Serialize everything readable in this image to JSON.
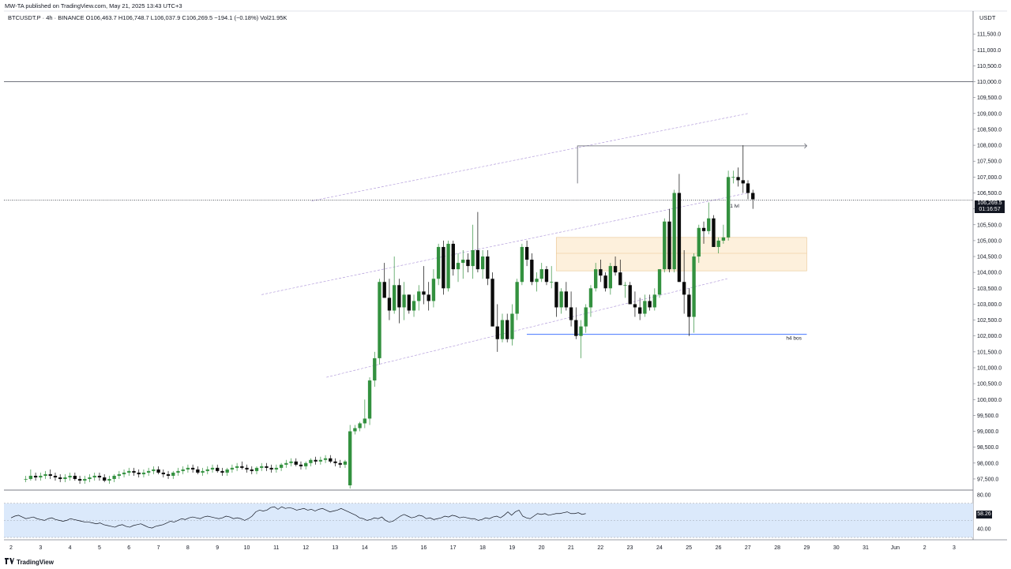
{
  "header": {
    "published": "MW-TA published on TradingView.com, May 21, 2025 13:43 UTC+3",
    "symbol_line": "BTCUSDT.P · 4h · BINANCE  O106,463.7  H106,748.7  L106,037.9  C106,269.5  −194.1 (−0.18%)  Vol21.95K"
  },
  "footer": {
    "brand": "TradingView"
  },
  "colors": {
    "up": "#33913f",
    "down": "#0b0b0b",
    "rsi_band": "#dbe9fb",
    "box": "#fdf0dc",
    "box_border": "#e8c48f",
    "bos_line": "#2962ff",
    "channel": "#b39ddb"
  },
  "icons": {
    "logo": "tradingview-logo-icon"
  },
  "chart_data": {
    "type": "candlestick",
    "currency": "USDT",
    "ylim": [
      97250,
      112000
    ],
    "yticks": [
      97500,
      98000,
      98500,
      99000,
      99500,
      100000,
      100500,
      101000,
      101500,
      102000,
      102500,
      103000,
      103500,
      104000,
      104500,
      105000,
      105500,
      106000,
      106500,
      107000,
      107500,
      108000,
      108500,
      109000,
      109500,
      110000,
      110500,
      111000,
      111500
    ],
    "ytick_labels": [
      "97,500.0",
      "98,000.0",
      "98,500.0",
      "99,000.0",
      "99,500.0",
      "100,000.0",
      "100,500.0",
      "101,000.0",
      "101,500.0",
      "102,000.0",
      "102,500.0",
      "103,000.0",
      "103,500.0",
      "104,000.0",
      "104,500.0",
      "105,000.0",
      "105,500.0",
      "106,000.0",
      "106,500.0",
      "107,000.0",
      "107,500.0",
      "108,000.0",
      "108,500.0",
      "109,000.0",
      "109,500.0",
      "110,000.0",
      "110,500.0",
      "111,000.0",
      "111,500.0"
    ],
    "x_range_days": [
      1.6,
      34.5
    ],
    "x_ticks": [
      {
        "day": 2,
        "label": "2"
      },
      {
        "day": 3,
        "label": "3"
      },
      {
        "day": 4,
        "label": "4"
      },
      {
        "day": 5,
        "label": "5"
      },
      {
        "day": 6,
        "label": "6"
      },
      {
        "day": 7,
        "label": "7"
      },
      {
        "day": 8,
        "label": "8"
      },
      {
        "day": 9,
        "label": "9"
      },
      {
        "day": 10,
        "label": "10"
      },
      {
        "day": 11,
        "label": "11"
      },
      {
        "day": 12,
        "label": "12"
      },
      {
        "day": 13,
        "label": "13"
      },
      {
        "day": 14,
        "label": "14"
      },
      {
        "day": 15,
        "label": "15"
      },
      {
        "day": 16,
        "label": "16"
      },
      {
        "day": 17,
        "label": "17"
      },
      {
        "day": 18,
        "label": "18"
      },
      {
        "day": 19,
        "label": "19"
      },
      {
        "day": 20,
        "label": "20"
      },
      {
        "day": 21,
        "label": "21"
      },
      {
        "day": 22,
        "label": "22"
      },
      {
        "day": 23,
        "label": "23"
      },
      {
        "day": 24,
        "label": "24"
      },
      {
        "day": 25,
        "label": "25"
      },
      {
        "day": 26,
        "label": "26"
      },
      {
        "day": 27,
        "label": "27"
      },
      {
        "day": 28,
        "label": "28"
      },
      {
        "day": 29,
        "label": "29"
      },
      {
        "day": 30,
        "label": "30"
      },
      {
        "day": 31,
        "label": "31"
      },
      {
        "day": 32,
        "label": "Jun"
      },
      {
        "day": 33,
        "label": "2"
      },
      {
        "day": 34,
        "label": "3"
      }
    ],
    "candles_start_day": 2.5,
    "candles_step_day": 0.1667,
    "candles": [
      [
        97500,
        97600,
        97400,
        97500
      ],
      [
        97500,
        97800,
        97450,
        97600
      ],
      [
        97600,
        97700,
        97450,
        97550
      ],
      [
        97550,
        97700,
        97450,
        97600
      ],
      [
        97600,
        97750,
        97500,
        97650
      ],
      [
        97650,
        97800,
        97500,
        97600
      ],
      [
        97600,
        97700,
        97450,
        97550
      ],
      [
        97550,
        97650,
        97400,
        97500
      ],
      [
        97500,
        97650,
        97400,
        97550
      ],
      [
        97550,
        97700,
        97450,
        97600
      ],
      [
        97600,
        97700,
        97450,
        97500
      ],
      [
        97500,
        97600,
        97350,
        97450
      ],
      [
        97450,
        97600,
        97350,
        97500
      ],
      [
        97500,
        97650,
        97400,
        97550
      ],
      [
        97550,
        97700,
        97450,
        97600
      ],
      [
        97600,
        97700,
        97450,
        97550
      ],
      [
        97550,
        97650,
        97400,
        97450
      ],
      [
        97450,
        97600,
        97350,
        97500
      ],
      [
        97500,
        97650,
        97400,
        97600
      ],
      [
        97600,
        97750,
        97500,
        97650
      ],
      [
        97650,
        97800,
        97550,
        97700
      ],
      [
        97700,
        97850,
        97600,
        97750
      ],
      [
        97750,
        97850,
        97600,
        97700
      ],
      [
        97700,
        97800,
        97550,
        97650
      ],
      [
        97650,
        97800,
        97550,
        97700
      ],
      [
        97700,
        97850,
        97600,
        97750
      ],
      [
        97750,
        97900,
        97650,
        97800
      ],
      [
        97800,
        97900,
        97650,
        97700
      ],
      [
        97700,
        97800,
        97550,
        97650
      ],
      [
        97650,
        97750,
        97500,
        97600
      ],
      [
        97600,
        97750,
        97500,
        97700
      ],
      [
        97700,
        97850,
        97600,
        97750
      ],
      [
        97750,
        97900,
        97650,
        97800
      ],
      [
        97800,
        97950,
        97700,
        97850
      ],
      [
        97850,
        97950,
        97700,
        97800
      ],
      [
        97800,
        97900,
        97650,
        97700
      ],
      [
        97700,
        97850,
        97600,
        97750
      ],
      [
        97750,
        97900,
        97650,
        97800
      ],
      [
        97800,
        97950,
        97700,
        97850
      ],
      [
        97850,
        97950,
        97700,
        97750
      ],
      [
        97750,
        97850,
        97600,
        97700
      ],
      [
        97700,
        97850,
        97600,
        97800
      ],
      [
        97800,
        97950,
        97700,
        97850
      ],
      [
        97850,
        98000,
        97750,
        97900
      ],
      [
        97900,
        98050,
        97800,
        97850
      ],
      [
        97850,
        97950,
        97700,
        97800
      ],
      [
        97800,
        97900,
        97650,
        97750
      ],
      [
        97750,
        97900,
        97650,
        97850
      ],
      [
        97850,
        98000,
        97750,
        97900
      ],
      [
        97900,
        98000,
        97750,
        97850
      ],
      [
        97850,
        97950,
        97700,
        97800
      ],
      [
        97800,
        97950,
        97700,
        97850
      ],
      [
        97850,
        98000,
        97750,
        97950
      ],
      [
        97950,
        98100,
        97850,
        98000
      ],
      [
        98000,
        98150,
        97900,
        98050
      ],
      [
        98050,
        98150,
        97900,
        97950
      ],
      [
        97950,
        98050,
        97800,
        97900
      ],
      [
        97900,
        98050,
        97800,
        98000
      ],
      [
        98000,
        98150,
        97900,
        98100
      ],
      [
        98100,
        98200,
        97950,
        98050
      ],
      [
        98050,
        98200,
        97950,
        98100
      ],
      [
        98100,
        98250,
        98000,
        98150
      ],
      [
        98150,
        98250,
        98000,
        98050
      ],
      [
        98050,
        98150,
        97900,
        98000
      ],
      [
        98000,
        98100,
        97850,
        97950
      ],
      [
        97950,
        98100,
        97850,
        98050
      ],
      [
        97300,
        99200,
        97200,
        99000
      ],
      [
        99000,
        99200,
        98900,
        99100
      ],
      [
        99100,
        99300,
        99000,
        99250
      ],
      [
        99250,
        100000,
        99100,
        99400
      ],
      [
        99400,
        100700,
        99200,
        100600
      ],
      [
        100600,
        101500,
        100400,
        101300
      ],
      [
        101300,
        103800,
        101100,
        103700
      ],
      [
        103700,
        104300,
        103200,
        103200
      ],
      [
        103200,
        103800,
        102500,
        102800
      ],
      [
        102800,
        104500,
        102700,
        103600
      ],
      [
        103600,
        103800,
        102400,
        102900
      ],
      [
        102900,
        103700,
        102500,
        103300
      ],
      [
        103300,
        103300,
        102700,
        102800
      ],
      [
        102800,
        103300,
        102600,
        103100
      ],
      [
        103100,
        103600,
        102800,
        103400
      ],
      [
        103400,
        104200,
        103000,
        103300
      ],
      [
        103300,
        103700,
        102800,
        103100
      ],
      [
        103100,
        104100,
        102900,
        103800
      ],
      [
        103800,
        104900,
        103600,
        104800
      ],
      [
        104800,
        105000,
        103300,
        103500
      ],
      [
        103500,
        105000,
        103400,
        104900
      ],
      [
        104900,
        105000,
        103900,
        104100
      ],
      [
        104100,
        104600,
        103700,
        104300
      ],
      [
        104300,
        104700,
        103800,
        104400
      ],
      [
        104400,
        104600,
        104000,
        104200
      ],
      [
        104200,
        105500,
        103800,
        104700
      ],
      [
        104700,
        105900,
        104000,
        104100
      ],
      [
        104100,
        104700,
        103800,
        104500
      ],
      [
        104500,
        104700,
        103600,
        103800
      ],
      [
        103800,
        104000,
        102300,
        102300
      ],
      [
        102300,
        103000,
        101500,
        101900
      ],
      [
        101900,
        102700,
        101800,
        102500
      ],
      [
        102500,
        102700,
        101800,
        101900
      ],
      [
        101900,
        103000,
        101700,
        102700
      ],
      [
        102700,
        103800,
        102500,
        103700
      ],
      [
        103700,
        104900,
        103600,
        104800
      ],
      [
        104800,
        105000,
        104200,
        104400
      ],
      [
        104400,
        104600,
        103600,
        103700
      ],
      [
        103700,
        104000,
        103400,
        103800
      ],
      [
        103800,
        104300,
        103700,
        104100
      ],
      [
        104100,
        104200,
        103600,
        103700
      ],
      [
        103700,
        104200,
        103500,
        103700
      ],
      [
        103700,
        103700,
        102600,
        102900
      ],
      [
        102900,
        103500,
        102700,
        103400
      ],
      [
        103400,
        103700,
        102800,
        102900
      ],
      [
        102900,
        103400,
        102300,
        102500
      ],
      [
        102500,
        102900,
        101900,
        102000
      ],
      [
        102000,
        102500,
        101300,
        102300
      ],
      [
        102300,
        103000,
        102100,
        102900
      ],
      [
        102900,
        103600,
        102600,
        103500
      ],
      [
        103500,
        104300,
        103400,
        104100
      ],
      [
        104100,
        104400,
        103700,
        103900
      ],
      [
        103900,
        104000,
        103400,
        103500
      ],
      [
        103500,
        104300,
        103300,
        104200
      ],
      [
        104200,
        104500,
        103900,
        104000
      ],
      [
        104000,
        104400,
        103600,
        103600
      ],
      [
        103600,
        103700,
        103200,
        103600
      ],
      [
        103600,
        103700,
        103000,
        103000
      ],
      [
        103000,
        103400,
        102600,
        102900
      ],
      [
        102900,
        103200,
        102500,
        102700
      ],
      [
        102700,
        103300,
        102600,
        103100
      ],
      [
        103100,
        103300,
        102800,
        102900
      ],
      [
        102900,
        103500,
        102800,
        103300
      ],
      [
        103300,
        104100,
        103200,
        104100
      ],
      [
        104100,
        105700,
        104000,
        105600
      ],
      [
        105600,
        106000,
        104000,
        104100
      ],
      [
        104100,
        106600,
        104000,
        106500
      ],
      [
        106500,
        107100,
        103700,
        103700
      ],
      [
        103700,
        104700,
        102700,
        103300
      ],
      [
        103300,
        103500,
        102000,
        102600
      ],
      [
        102600,
        104600,
        102100,
        104500
      ],
      [
        104500,
        105500,
        104300,
        105400
      ],
      [
        105400,
        105600,
        104900,
        105300
      ],
      [
        105300,
        106200,
        105200,
        105700
      ],
      [
        105700,
        105800,
        104800,
        104800
      ],
      [
        104800,
        105100,
        104600,
        105000
      ],
      [
        105000,
        105500,
        104900,
        105100
      ],
      [
        105100,
        107200,
        105000,
        107000
      ],
      [
        107000,
        107200,
        106800,
        107000
      ],
      [
        107000,
        107300,
        106700,
        106900
      ],
      [
        106900,
        108000,
        106500,
        106800
      ],
      [
        106800,
        106900,
        106300,
        106500
      ],
      [
        106500,
        106600,
        106000,
        106300
      ]
    ],
    "last_price": "106,269.5",
    "countdown": "01:16:57",
    "levels": [
      {
        "price": 110000,
        "label": ""
      },
      {
        "price": 106269.5,
        "label": "d1 lvl"
      },
      {
        "price": 102050,
        "label": "h4 bos"
      },
      {
        "price": 107980,
        "label": ""
      }
    ],
    "zone": {
      "from_day": 20.5,
      "to_day": 29,
      "low": 104050,
      "high": 105100,
      "mid": 104600
    },
    "rsi": {
      "ylim": [
        30,
        80
      ],
      "yticks": [
        80,
        40
      ],
      "ytick_labels": [
        "80.00",
        "40.00"
      ],
      "band": [
        30,
        70
      ],
      "last": "58.26",
      "values": [
        53,
        55,
        56,
        54,
        52,
        53,
        54,
        52,
        51,
        50,
        52,
        53,
        51,
        50,
        49,
        50,
        52,
        51,
        50,
        49,
        48,
        48,
        47,
        46,
        47,
        45,
        44,
        43,
        42,
        44,
        45,
        43,
        42,
        44,
        45,
        46,
        44,
        42,
        41,
        43,
        44,
        45,
        47,
        49,
        48,
        50,
        52,
        51,
        53,
        54,
        53,
        52,
        54,
        55,
        54,
        53,
        52,
        53,
        55,
        54,
        52,
        53,
        52,
        50,
        52,
        55,
        60,
        62,
        61,
        62,
        65,
        66,
        63,
        66,
        64,
        65,
        64,
        62,
        63,
        64,
        62,
        63,
        61,
        63,
        64,
        62,
        60,
        61,
        62,
        64,
        62,
        60,
        58,
        56,
        53,
        52,
        50,
        51,
        53,
        52,
        54,
        50,
        48,
        49,
        52,
        55,
        57,
        55,
        53,
        54,
        56,
        55,
        52,
        53,
        51,
        52,
        53,
        55,
        54,
        56,
        55,
        53,
        54,
        53,
        52,
        52,
        50,
        51,
        53,
        52,
        54,
        55,
        53,
        56,
        60,
        56,
        60,
        62,
        55,
        53,
        52,
        55,
        58,
        57,
        58,
        56,
        57,
        58,
        58,
        59,
        60,
        58,
        58,
        59,
        57,
        58
      ]
    }
  }
}
